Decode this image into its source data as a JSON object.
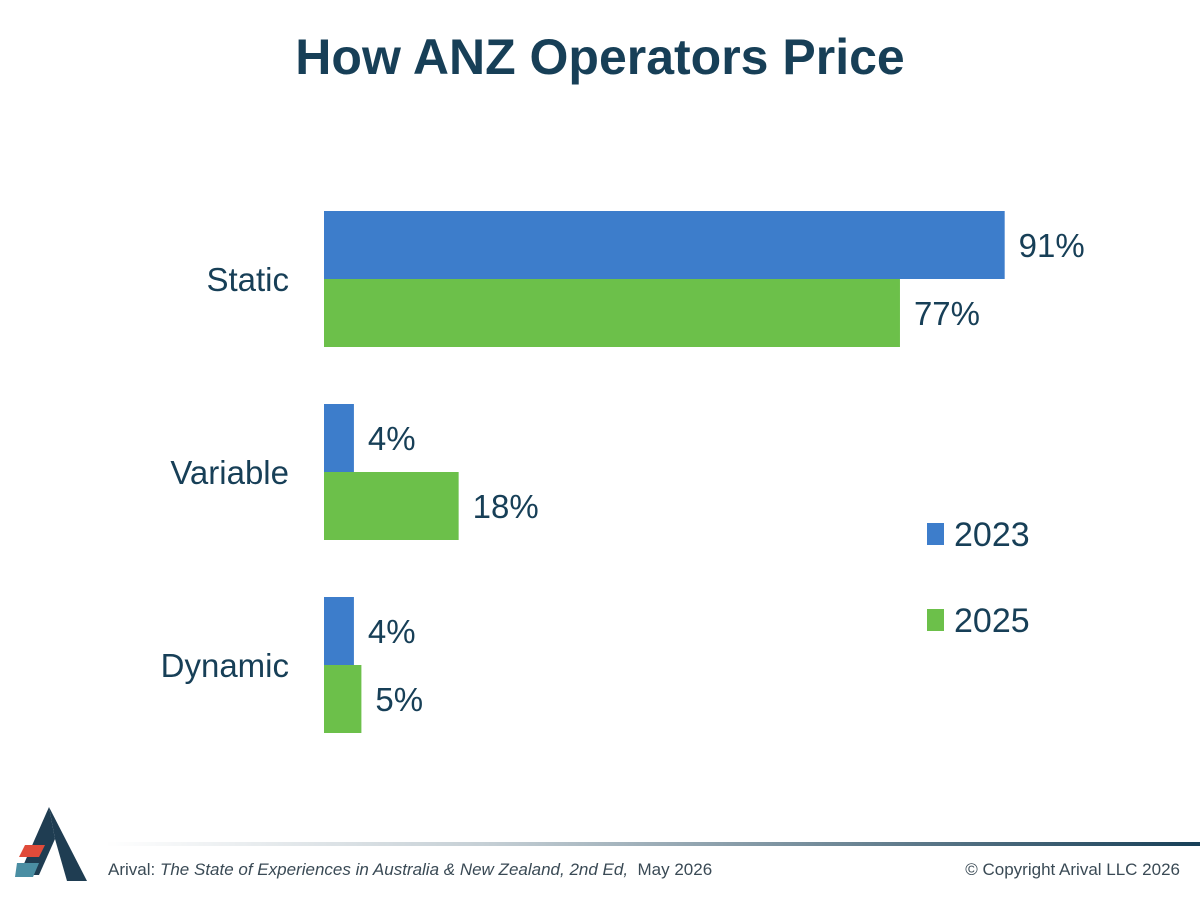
{
  "title": "How ANZ Operators Price",
  "colors": {
    "2023": "#3d7dcb",
    "2025": "#6cc04a",
    "text": "#173f57"
  },
  "chart_data": {
    "type": "bar",
    "orientation": "horizontal",
    "title": "How ANZ Operators Price",
    "categories": [
      "Static",
      "Variable",
      "Dynamic"
    ],
    "series": [
      {
        "name": "2023",
        "values": [
          91,
          4,
          4
        ],
        "labels": [
          "91%",
          "4%",
          "4%"
        ]
      },
      {
        "name": "2025",
        "values": [
          77,
          18,
          5
        ],
        "labels": [
          "77%",
          "18%",
          "5%"
        ]
      }
    ],
    "unit": "%",
    "xlim": [
      0,
      100
    ],
    "grid": false,
    "legend": "right"
  },
  "footer": {
    "source_prefix": "Arival: ",
    "source_title": "The State of Experiences in Australia & New Zealand, 2nd Ed,",
    "source_date": "  May 2026",
    "copyright": "© Copyright Arival LLC 2026"
  },
  "logo": {
    "icon": "arival-logo-icon"
  }
}
